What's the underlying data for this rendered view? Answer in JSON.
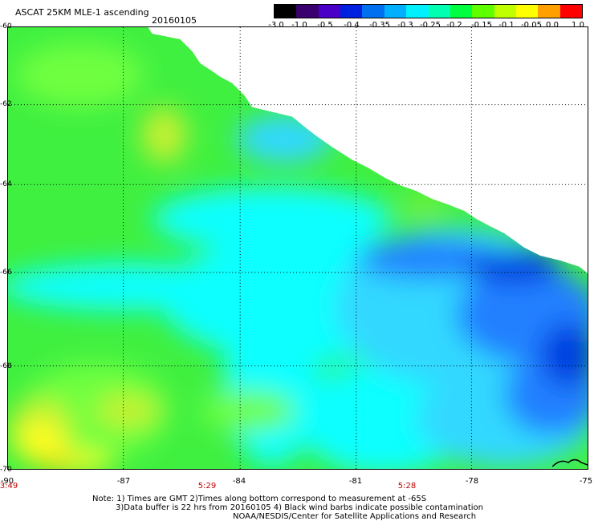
{
  "header": {
    "title": "ASCAT 25KM MLE-1 ascending",
    "date": "20160105"
  },
  "colorbar": {
    "labels": [
      "-3.0",
      "-1.0",
      "-0.5",
      "-0.4",
      "-0.35",
      "-0.3",
      "-0.25",
      "-0.2",
      "-0.15",
      "-0.1",
      "-0.05",
      "0.0",
      "1.0"
    ],
    "colors": [
      "#000000",
      "#3a006e",
      "#4b00c8",
      "#0020e0",
      "#0070f0",
      "#00b0ff",
      "#00f0ff",
      "#00ffb0",
      "#00ff40",
      "#60ff00",
      "#c0ff00",
      "#ffff00",
      "#ffa000",
      "#ff0000"
    ]
  },
  "map": {
    "lat_labels": [
      "-60",
      "-62",
      "-64",
      "-66",
      "-68",
      "-70"
    ],
    "lon_labels": [
      "-90",
      "-87",
      "-84",
      "-81",
      "-78",
      "-75"
    ],
    "time_labels": [
      "3:49",
      "5:29",
      "5:28"
    ],
    "field_colors": {
      "green": "#40f040",
      "lightgreen": "#70ff40",
      "yellowgreen": "#c8f030",
      "yellow": "#ffff20",
      "orange": "#ffd000",
      "cyan": "#10ffff",
      "lightblue": "#30d8ff",
      "blue": "#2080ff",
      "darkblue": "#0040e0",
      "navy": "#0010d0"
    }
  },
  "notes": {
    "line1": "Note: 1) Times are GMT 2)Times along bottom correspond to measurement at -65S",
    "line2": "3)Data buffer is 22 hrs from 20160105 4) Black wind barbs indicate possible contamination",
    "line3": "NOAA/NESDIS/Center for Satellite Applications and Research"
  }
}
